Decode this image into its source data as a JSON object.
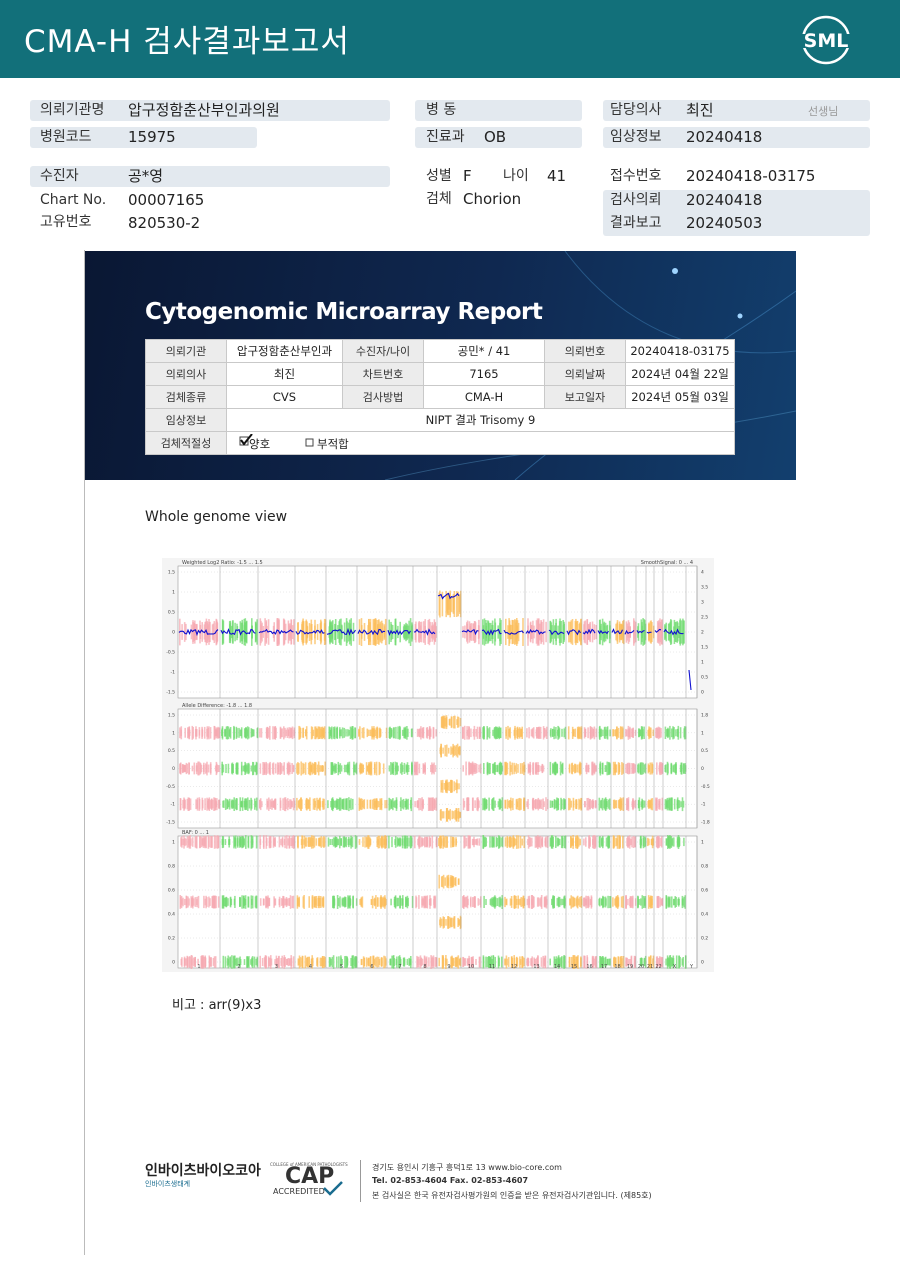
{
  "header": {
    "title": "CMA-H 검사결과보고서",
    "logo": "SML"
  },
  "info": {
    "col1": [
      {
        "label": "의뢰기관명",
        "value": "압구정함춘산부인과의원"
      },
      {
        "label": "병원코드",
        "value": "15975"
      },
      {
        "label": "수진자",
        "value": "공*영"
      },
      {
        "label": "Chart No.",
        "value": "00007165"
      },
      {
        "label": "고유번호",
        "value": "820530-2"
      }
    ],
    "col2": {
      "ward_label": "병 동",
      "dept_label": "진료과",
      "dept": "OB",
      "sex_label": "성별",
      "sex": "F",
      "age_label": "나이",
      "age": "41",
      "specimen_label": "검체",
      "specimen": "Chorion"
    },
    "col3": [
      {
        "label": "담당의사",
        "value": "최진",
        "suffix": "선생님"
      },
      {
        "label": "임상정보",
        "value": "20240418"
      },
      {
        "label": "접수번호",
        "value": "20240418-03175"
      },
      {
        "label": "검사의뢰",
        "value": "20240418"
      },
      {
        "label": "결과보고",
        "value": "20240503"
      }
    ]
  },
  "report": {
    "title": "Cytogenomic Microarray Report",
    "rows": [
      [
        "의뢰기관",
        "압구정함춘산부인과",
        "수진자/나이",
        "공민* / 41",
        "의뢰번호",
        "20240418-03175"
      ],
      [
        "의뢰의사",
        "최진",
        "차트번호",
        "7165",
        "의뢰날짜",
        "2024년 04월 22일"
      ],
      [
        "검체종류",
        "CVS",
        "검사방법",
        "CMA-H",
        "보고일자",
        "2024년 05월 03일"
      ],
      [
        "임상정보",
        "NIPT 결과 Trisomy 9"
      ],
      [
        "검체적절성",
        "양호",
        "부적합"
      ]
    ]
  },
  "section_title": "Whole genome view",
  "plot": {
    "panels": [
      {
        "label": "Weighted Log2 Ratio: -1.5 ... 1.5",
        "right_label": "SmoothSignal: 0 ... 4",
        "left_ticks": [
          "1.5",
          "1",
          "0.5",
          "0",
          "-0.5",
          "-1",
          "-1.5"
        ],
        "right_ticks": [
          "4",
          "3.5",
          "3",
          "2.5",
          "2",
          "1.5",
          "1",
          "0.5",
          "0"
        ]
      },
      {
        "label": "Allele Difference: -1.8 ... 1.8",
        "left_ticks": [
          "1.5",
          "1",
          "0.5",
          "0",
          "-0.5",
          "-1",
          "-1.5"
        ],
        "right_ticks": [
          "1.8",
          "1",
          "0.5",
          "0",
          "-0.5",
          "-1",
          "-1.8"
        ]
      },
      {
        "label": "BAF: 0 ... 1",
        "left_ticks": [
          "1",
          "0.8",
          "0.6",
          "0.4",
          "0.2",
          "0"
        ],
        "right_ticks": [
          "1",
          "0.8",
          "0.6",
          "0.4",
          "0.2",
          "0"
        ]
      }
    ],
    "chromosomes": [
      "1",
      "2",
      "3",
      "4",
      "5",
      "6",
      "7",
      "8",
      "9",
      "10",
      "11",
      "12",
      "13",
      "14",
      "15",
      "16",
      "17",
      "18",
      "19",
      "20",
      "21",
      "22",
      "X",
      "Y"
    ]
  },
  "remark": "비고 : arr(9)x3",
  "footer": {
    "company": "인바이츠바이오코아",
    "company_sub": "인바이츠생태계",
    "cap_top": "COLLEGE of AMERICAN PATHOLOGISTS",
    "cap": "CAP",
    "cap_accredited": "ACCREDITED",
    "address": "경기도 용인시 기흥구 흥덕1로 13   www.bio-core.com",
    "tel": "Tel. 02-853-4604   Fax. 02-853-4607",
    "notice": "본 검사실은 한국 유전자검사평가원의 인증을 받은 유전자검사기관입니다. (제85호)"
  }
}
